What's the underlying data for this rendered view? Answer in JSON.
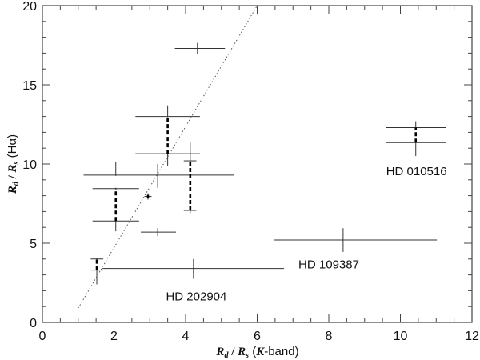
{
  "chart_data": {
    "type": "scatter",
    "title": "",
    "xlabel": "R_d / R_s (K-band)",
    "ylabel": "R_d / R_s (Hα)",
    "xlabel_parts": {
      "main": "R",
      "sub1": "d",
      "sep": " / ",
      "main2": "R",
      "sub2": "s",
      "suffix_open": " (",
      "italic": "K",
      "suffix_close": "-band)"
    },
    "ylabel_parts": {
      "main": "R",
      "sub1": "d",
      "sep": " / ",
      "main2": "R",
      "sub2": "s",
      "suffix": " (Hα)"
    },
    "xlim": [
      0,
      12
    ],
    "ylim": [
      0,
      20
    ],
    "x_ticks": [
      0,
      2,
      4,
      6,
      8,
      10,
      12
    ],
    "x_tick_labels": [
      "0",
      "2",
      "4",
      "6",
      "8",
      "10",
      "12"
    ],
    "y_ticks": [
      0,
      5,
      10,
      15,
      20
    ],
    "y_tick_labels": [
      "0",
      "5",
      "10",
      "15",
      "20"
    ],
    "x_minor_step": 0.5,
    "y_minor_step": 1,
    "grid": false,
    "legend": null,
    "reference_line": {
      "style": "dotted",
      "x": [
        1.0,
        6.0
      ],
      "y": [
        0.9,
        20.0
      ]
    },
    "points": [
      {
        "x": 4.33,
        "y": 17.3,
        "xerr": [
          3.7,
          5.1
        ],
        "yerr": [
          16.95,
          17.65
        ]
      },
      {
        "x": 3.5,
        "y": 13.0,
        "xerr": [
          2.6,
          4.4
        ],
        "yerr": [
          12.95,
          13.7
        ]
      },
      {
        "x": 3.5,
        "y": 10.65,
        "xerr": [
          2.6,
          4.4
        ],
        "yerr": [
          9.9,
          10.7
        ]
      },
      {
        "x": 4.13,
        "y": 10.2,
        "xerr": [
          3.95,
          4.3
        ],
        "yerr": [
          10.15,
          11.35
        ]
      },
      {
        "x": 4.13,
        "y": 7.07,
        "xerr": [
          3.95,
          4.3
        ],
        "yerr": [
          6.9,
          7.1
        ]
      },
      {
        "x": 2.05,
        "y": 9.3,
        "xerr": [
          1.15,
          5.35
        ],
        "yerr": [
          9.25,
          10.1
        ]
      },
      {
        "x": 3.22,
        "y": 9.3,
        "xerr": [
          3.22,
          3.22
        ],
        "yerr": [
          8.5,
          10.0
        ]
      },
      {
        "x": 2.05,
        "y": 8.45,
        "xerr": [
          1.4,
          2.7
        ],
        "yerr": [
          8.4,
          8.5
        ]
      },
      {
        "x": 2.05,
        "y": 6.4,
        "xerr": [
          1.4,
          2.7
        ],
        "yerr": [
          5.75,
          6.45
        ]
      },
      {
        "x": 2.95,
        "y": 7.95,
        "xerr": [
          2.85,
          3.05
        ],
        "yerr": [
          7.75,
          8.15
        ]
      },
      {
        "x": 3.22,
        "y": 5.7,
        "xerr": [
          2.75,
          3.73
        ],
        "yerr": [
          5.45,
          5.95
        ]
      },
      {
        "x": 1.52,
        "y": 4.0,
        "xerr": [
          1.35,
          1.7
        ],
        "yerr": [
          3.95,
          4.05
        ]
      },
      {
        "x": 1.52,
        "y": 3.3,
        "xerr": [
          1.35,
          1.7
        ],
        "yerr": [
          2.4,
          3.35
        ]
      },
      {
        "x": 4.22,
        "y": 3.4,
        "xerr": [
          1.68,
          6.75
        ],
        "yerr": [
          2.75,
          4.0
        ],
        "label": "HD 202904"
      },
      {
        "x": 8.4,
        "y": 5.2,
        "xerr": [
          6.48,
          11.02
        ],
        "yerr": [
          4.45,
          5.95
        ],
        "label": "HD 109387"
      },
      {
        "x": 10.43,
        "y": 12.3,
        "xerr": [
          9.6,
          11.27
        ],
        "yerr": [
          12.25,
          12.7
        ]
      },
      {
        "x": 10.43,
        "y": 11.35,
        "xerr": [
          9.6,
          11.27
        ],
        "yerr": [
          10.5,
          11.4
        ],
        "label": "HD 010516"
      }
    ],
    "dashed_connectors": [
      {
        "x": 3.5,
        "y": [
          10.65,
          13.0
        ]
      },
      {
        "x": 4.13,
        "y": [
          7.07,
          10.2
        ]
      },
      {
        "x": 2.05,
        "y": [
          6.4,
          8.45
        ]
      },
      {
        "x": 1.52,
        "y": [
          3.3,
          4.0
        ]
      },
      {
        "x": 10.43,
        "y": [
          11.35,
          12.3
        ]
      },
      {
        "x": 2.95,
        "y": [
          7.85,
          8.05
        ]
      }
    ],
    "annotations": [
      {
        "text": "HD 010516",
        "x": 10.45,
        "y": 9.3
      },
      {
        "text": "HD 109387",
        "x": 8.0,
        "y": 3.4
      },
      {
        "text": "HD 202904",
        "x": 4.3,
        "y": 1.4
      }
    ]
  }
}
